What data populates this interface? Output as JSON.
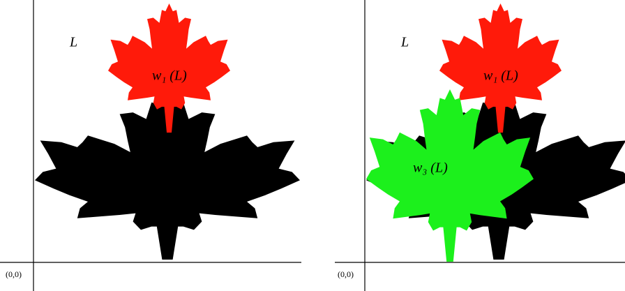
{
  "left_panel": {
    "set_label": "L",
    "map_labels": [
      "w₁ (L)"
    ],
    "origin_label": "(0,0)"
  },
  "right_panel": {
    "set_label": "L",
    "map_labels": [
      "w₁ (L)",
      "w₃ (L)"
    ],
    "origin_label": "(0,0)"
  }
}
